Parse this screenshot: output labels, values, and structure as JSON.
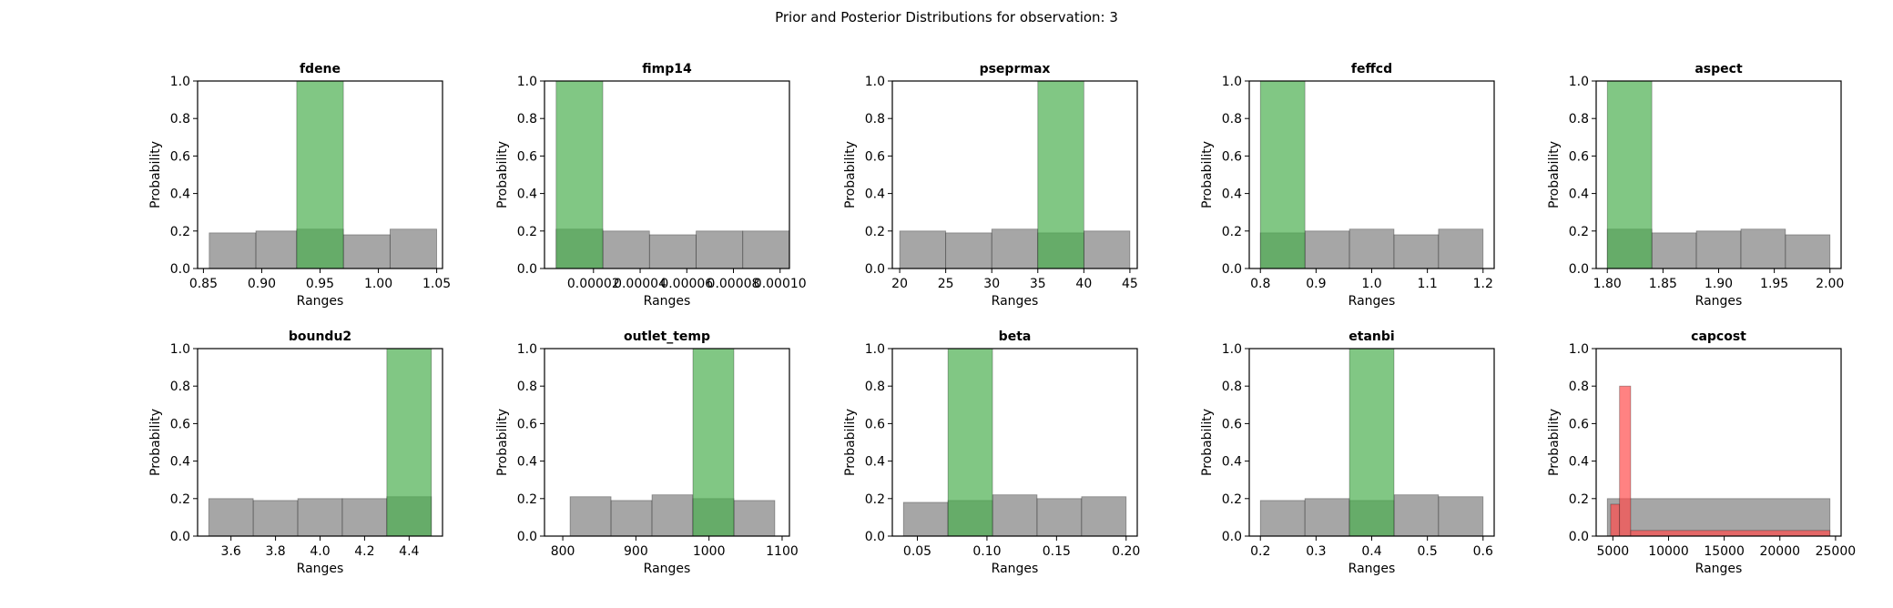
{
  "figure_title": "Prior and Posterior Distributions for observation: 3",
  "colors": {
    "prior": "#808080",
    "posterior": "#4caf50",
    "output_posterior": "#ff4d4d"
  },
  "chart_data": [
    {
      "type": "bar",
      "title": "fdene",
      "xlabel": "Ranges",
      "ylabel": "Probability",
      "xlim": [
        0.845,
        1.055
      ],
      "ylim": [
        0,
        1
      ],
      "xticks": [
        0.85,
        0.9,
        0.95,
        1.0,
        1.05
      ],
      "xtick_labels": [
        "0.85",
        "0.90",
        "0.95",
        "1.00",
        "1.05"
      ],
      "yticks": [
        0,
        0.2,
        0.4,
        0.6,
        0.8,
        1.0
      ],
      "ytick_labels": [
        "0.0",
        "0.2",
        "0.4",
        "0.6",
        "0.8",
        "1.0"
      ],
      "prior": {
        "edges": [
          0.855,
          0.895,
          0.93,
          0.97,
          1.01,
          1.05
        ],
        "values": [
          0.19,
          0.2,
          0.21,
          0.18,
          0.21
        ]
      },
      "posterior": {
        "color_key": "posterior",
        "edges": [
          0.93,
          0.97
        ],
        "values": [
          1.0
        ]
      }
    },
    {
      "type": "bar",
      "title": "fimp14",
      "xlabel": "Ranges",
      "ylabel": "Probability",
      "xlim": [
        -1e-06,
        0.000104
      ],
      "ylim": [
        0,
        1
      ],
      "xticks": [
        2e-05,
        4e-05,
        6e-05,
        8e-05,
        0.0001
      ],
      "xtick_labels": [
        "0.00002",
        "0.00004",
        "0.00006",
        "0.00008",
        "0.00010"
      ],
      "yticks": [
        0,
        0.2,
        0.4,
        0.6,
        0.8,
        1.0
      ],
      "ytick_labels": [
        "0.0",
        "0.2",
        "0.4",
        "0.6",
        "0.8",
        "1.0"
      ],
      "prior": {
        "edges": [
          4e-06,
          2.4e-05,
          4.4e-05,
          6.4e-05,
          8.4e-05,
          0.000104
        ],
        "values": [
          0.21,
          0.2,
          0.18,
          0.2,
          0.2
        ]
      },
      "posterior": {
        "color_key": "posterior",
        "edges": [
          4e-06,
          2.4e-05
        ],
        "values": [
          1.0
        ]
      }
    },
    {
      "type": "bar",
      "title": "pseprmax",
      "xlabel": "Ranges",
      "ylabel": "Probability",
      "xlim": [
        19.2,
        45.8
      ],
      "ylim": [
        0,
        1
      ],
      "xticks": [
        20,
        25,
        30,
        35,
        40,
        45
      ],
      "xtick_labels": [
        "20",
        "25",
        "30",
        "35",
        "40",
        "45"
      ],
      "yticks": [
        0,
        0.2,
        0.4,
        0.6,
        0.8,
        1.0
      ],
      "ytick_labels": [
        "0.0",
        "0.2",
        "0.4",
        "0.6",
        "0.8",
        "1.0"
      ],
      "prior": {
        "edges": [
          20,
          25,
          30,
          35,
          40,
          45
        ],
        "values": [
          0.2,
          0.19,
          0.21,
          0.19,
          0.2
        ]
      },
      "posterior": {
        "color_key": "posterior",
        "edges": [
          35,
          40
        ],
        "values": [
          1.0
        ]
      }
    },
    {
      "type": "bar",
      "title": "feffcd",
      "xlabel": "Ranges",
      "ylabel": "Probability",
      "xlim": [
        0.78,
        1.22
      ],
      "ylim": [
        0,
        1
      ],
      "xticks": [
        0.8,
        0.9,
        1.0,
        1.1,
        1.2
      ],
      "xtick_labels": [
        "0.8",
        "0.9",
        "1.0",
        "1.1",
        "1.2"
      ],
      "yticks": [
        0,
        0.2,
        0.4,
        0.6,
        0.8,
        1.0
      ],
      "ytick_labels": [
        "0.0",
        "0.2",
        "0.4",
        "0.6",
        "0.8",
        "1.0"
      ],
      "prior": {
        "edges": [
          0.8,
          0.88,
          0.96,
          1.04,
          1.12,
          1.2
        ],
        "values": [
          0.19,
          0.2,
          0.21,
          0.18,
          0.21
        ]
      },
      "posterior": {
        "color_key": "posterior",
        "edges": [
          0.8,
          0.88
        ],
        "values": [
          1.0
        ]
      }
    },
    {
      "type": "bar",
      "title": "aspect",
      "xlabel": "Ranges",
      "ylabel": "Probability",
      "xlim": [
        1.79,
        2.01
      ],
      "ylim": [
        0,
        1
      ],
      "xticks": [
        1.8,
        1.85,
        1.9,
        1.95,
        2.0
      ],
      "xtick_labels": [
        "1.80",
        "1.85",
        "1.90",
        "1.95",
        "2.00"
      ],
      "yticks": [
        0,
        0.2,
        0.4,
        0.6,
        0.8,
        1.0
      ],
      "ytick_labels": [
        "0.0",
        "0.2",
        "0.4",
        "0.6",
        "0.8",
        "1.0"
      ],
      "prior": {
        "edges": [
          1.8,
          1.84,
          1.88,
          1.92,
          1.96,
          2.0
        ],
        "values": [
          0.21,
          0.19,
          0.2,
          0.21,
          0.18
        ]
      },
      "posterior": {
        "color_key": "posterior",
        "edges": [
          1.8,
          1.84
        ],
        "values": [
          1.0
        ]
      }
    },
    {
      "type": "bar",
      "title": "boundu2",
      "xlabel": "Ranges",
      "ylabel": "Probability",
      "xlim": [
        3.45,
        4.55
      ],
      "ylim": [
        0,
        1
      ],
      "xticks": [
        3.6,
        3.8,
        4.0,
        4.2,
        4.4
      ],
      "xtick_labels": [
        "3.6",
        "3.8",
        "4.0",
        "4.2",
        "4.4"
      ],
      "yticks": [
        0,
        0.2,
        0.4,
        0.6,
        0.8,
        1.0
      ],
      "ytick_labels": [
        "0.0",
        "0.2",
        "0.4",
        "0.6",
        "0.8",
        "1.0"
      ],
      "prior": {
        "edges": [
          3.5,
          3.7,
          3.9,
          4.1,
          4.3,
          4.5
        ],
        "values": [
          0.2,
          0.19,
          0.2,
          0.2,
          0.21
        ]
      },
      "posterior": {
        "color_key": "posterior",
        "edges": [
          4.3,
          4.5
        ],
        "values": [
          1.0
        ]
      }
    },
    {
      "type": "bar",
      "title": "outlet_temp",
      "xlabel": "Ranges",
      "ylabel": "Probability",
      "xlim": [
        775,
        1110
      ],
      "ylim": [
        0,
        1
      ],
      "xticks": [
        800,
        900,
        1000,
        1100
      ],
      "xtick_labels": [
        "800",
        "900",
        "1000",
        "1100"
      ],
      "yticks": [
        0,
        0.2,
        0.4,
        0.6,
        0.8,
        1.0
      ],
      "ytick_labels": [
        "0.0",
        "0.2",
        "0.4",
        "0.6",
        "0.8",
        "1.0"
      ],
      "prior": {
        "edges": [
          810,
          866,
          922,
          978,
          1034,
          1090
        ],
        "values": [
          0.21,
          0.19,
          0.22,
          0.2,
          0.19
        ]
      },
      "posterior": {
        "color_key": "posterior",
        "edges": [
          978,
          1034
        ],
        "values": [
          1.0
        ]
      }
    },
    {
      "type": "bar",
      "title": "beta",
      "xlabel": "Ranges",
      "ylabel": "Probability",
      "xlim": [
        0.032,
        0.208
      ],
      "ylim": [
        0,
        1
      ],
      "xticks": [
        0.05,
        0.1,
        0.15,
        0.2
      ],
      "xtick_labels": [
        "0.05",
        "0.10",
        "0.15",
        "0.20"
      ],
      "yticks": [
        0,
        0.2,
        0.4,
        0.6,
        0.8,
        1.0
      ],
      "ytick_labels": [
        "0.0",
        "0.2",
        "0.4",
        "0.6",
        "0.8",
        "1.0"
      ],
      "prior": {
        "edges": [
          0.04,
          0.072,
          0.104,
          0.136,
          0.168,
          0.2
        ],
        "values": [
          0.18,
          0.19,
          0.22,
          0.2,
          0.21
        ]
      },
      "posterior": {
        "color_key": "posterior",
        "edges": [
          0.072,
          0.104
        ],
        "values": [
          1.0
        ]
      }
    },
    {
      "type": "bar",
      "title": "etanbi",
      "xlabel": "Ranges",
      "ylabel": "Probability",
      "xlim": [
        0.18,
        0.62
      ],
      "ylim": [
        0,
        1
      ],
      "xticks": [
        0.2,
        0.3,
        0.4,
        0.5,
        0.6
      ],
      "xtick_labels": [
        "0.2",
        "0.3",
        "0.4",
        "0.5",
        "0.6"
      ],
      "yticks": [
        0,
        0.2,
        0.4,
        0.6,
        0.8,
        1.0
      ],
      "ytick_labels": [
        "0.0",
        "0.2",
        "0.4",
        "0.6",
        "0.8",
        "1.0"
      ],
      "prior": {
        "edges": [
          0.2,
          0.28,
          0.36,
          0.44,
          0.52,
          0.6
        ],
        "values": [
          0.19,
          0.2,
          0.19,
          0.22,
          0.21
        ]
      },
      "posterior": {
        "color_key": "posterior",
        "edges": [
          0.36,
          0.44
        ],
        "values": [
          1.0
        ]
      }
    },
    {
      "type": "bar",
      "title": "capcost",
      "xlabel": "Ranges",
      "ylabel": "Probability",
      "xlim": [
        3500,
        25500
      ],
      "ylim": [
        0,
        1
      ],
      "xticks": [
        5000,
        10000,
        15000,
        20000,
        25000
      ],
      "xtick_labels": [
        "5000",
        "10000",
        "15000",
        "20000",
        "25000"
      ],
      "yticks": [
        0,
        0.2,
        0.4,
        0.6,
        0.8,
        1.0
      ],
      "ytick_labels": [
        "0.0",
        "0.2",
        "0.4",
        "0.6",
        "0.8",
        "1.0"
      ],
      "prior": {
        "edges": [
          4500,
          24500
        ],
        "values": [
          0.2
        ]
      },
      "posterior": {
        "color_key": "output_posterior",
        "edges": [
          4800,
          5600,
          6600,
          24500
        ],
        "values": [
          0.17,
          0.8,
          0.03
        ]
      }
    }
  ]
}
